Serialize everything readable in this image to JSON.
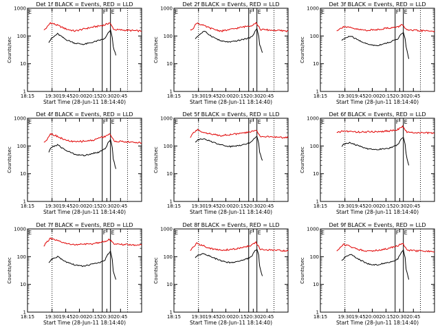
{
  "figure": {
    "xlabel": "Start Time (28-Jun-11 18:14:40)",
    "ylabel": "Counts/sec",
    "x_ticks": [
      "18:15",
      "19:30",
      "19:45",
      "20:00",
      "20:15",
      "20:30",
      "20:45"
    ],
    "y_ticks": [
      "1",
      "10",
      "100",
      "1000"
    ],
    "marker_labels": [
      "E",
      "F",
      "E"
    ],
    "colors": {
      "events": "#000000",
      "lld": "#e00000",
      "axes": "#000000",
      "background": "#ffffff"
    }
  },
  "chart_data": [
    {
      "type": "line",
      "title": "Det 1f BLACK = Events, RED = LLD",
      "ylim": [
        1,
        1000
      ],
      "y_scale": "log",
      "xlim": [
        "18:14:40",
        "20:54:00"
      ],
      "event_lines": [
        "18:14:40",
        "19:30",
        "20:25",
        "20:34",
        "20:48"
      ],
      "series": [
        {
          "name": "LLD",
          "color": "#e00000",
          "t": [
            "19:05",
            "19:15",
            "19:25",
            "19:35",
            "19:45",
            "19:55",
            "20:05",
            "20:15",
            "20:22",
            "20:28",
            "20:33",
            "20:38",
            "20:54"
          ],
          "values": [
            160,
            210,
            300,
            250,
            180,
            150,
            180,
            210,
            230,
            250,
            300,
            170,
            150
          ]
        },
        {
          "name": "Events",
          "color": "#000000",
          "t": [
            "19:20",
            "19:28",
            "19:36",
            "19:45",
            "19:55",
            "20:05",
            "20:15",
            "20:22",
            "20:28",
            "20:31",
            "20:34",
            "20:36",
            "20:37",
            "20:40"
          ],
          "values": [
            60,
            80,
            120,
            75,
            55,
            50,
            60,
            70,
            80,
            120,
            160,
            90,
            40,
            20
          ]
        }
      ]
    },
    {
      "type": "line",
      "title": "Det 2f BLACK = Events, RED = LLD",
      "ylim": [
        1,
        1000
      ],
      "y_scale": "log",
      "xlim": [
        "18:14:40",
        "20:54:00"
      ],
      "event_lines": [
        "18:14:40",
        "19:30",
        "20:25",
        "20:34",
        "20:48"
      ],
      "series": [
        {
          "name": "LLD",
          "color": "#e00000",
          "t": [
            "19:05",
            "19:15",
            "19:25",
            "19:35",
            "19:45",
            "19:55",
            "20:05",
            "20:15",
            "20:22",
            "20:28",
            "20:33",
            "20:38",
            "20:54"
          ],
          "values": [
            160,
            200,
            300,
            240,
            180,
            150,
            170,
            200,
            220,
            240,
            300,
            170,
            150
          ]
        },
        {
          "name": "Events",
          "color": "#000000",
          "t": [
            "19:20",
            "19:28",
            "19:36",
            "19:45",
            "19:55",
            "20:05",
            "20:15",
            "20:22",
            "20:28",
            "20:31",
            "20:34",
            "20:36",
            "20:37",
            "20:40"
          ],
          "values": [
            80,
            100,
            150,
            95,
            65,
            60,
            70,
            80,
            90,
            130,
            180,
            100,
            50,
            25
          ]
        }
      ]
    },
    {
      "type": "line",
      "title": "Det 3f BLACK = Events, RED = LLD",
      "ylim": [
        1,
        1000
      ],
      "y_scale": "log",
      "xlim": [
        "18:14:40",
        "20:54:00"
      ],
      "event_lines": [
        "18:14:40",
        "19:30",
        "20:25",
        "20:34",
        "20:48"
      ],
      "series": [
        {
          "name": "LLD",
          "color": "#e00000",
          "t": [
            "19:05",
            "19:15",
            "19:25",
            "19:35",
            "19:45",
            "19:55",
            "20:05",
            "20:15",
            "20:22",
            "20:28",
            "20:33",
            "20:38",
            "20:54"
          ],
          "values": [
            160,
            180,
            220,
            200,
            170,
            160,
            170,
            190,
            200,
            210,
            260,
            160,
            150
          ]
        },
        {
          "name": "Events",
          "color": "#000000",
          "t": [
            "19:20",
            "19:28",
            "19:36",
            "19:45",
            "19:55",
            "20:05",
            "20:15",
            "20:22",
            "20:28",
            "20:31",
            "20:34",
            "20:36",
            "20:37",
            "20:40"
          ],
          "values": [
            70,
            80,
            100,
            70,
            50,
            45,
            55,
            65,
            80,
            110,
            130,
            80,
            40,
            15
          ]
        }
      ]
    },
    {
      "type": "line",
      "title": "Det 4f BLACK = Events, RED = LLD",
      "ylim": [
        1,
        1000
      ],
      "y_scale": "log",
      "xlim": [
        "18:14:40",
        "20:54:00"
      ],
      "event_lines": [
        "18:14:40",
        "19:30",
        "20:25",
        "20:34",
        "20:48"
      ],
      "series": [
        {
          "name": "LLD",
          "color": "#e00000",
          "t": [
            "19:05",
            "19:15",
            "19:25",
            "19:35",
            "19:45",
            "19:55",
            "20:05",
            "20:15",
            "20:22",
            "20:28",
            "20:33",
            "20:38",
            "20:54"
          ],
          "values": [
            130,
            180,
            280,
            230,
            160,
            140,
            150,
            160,
            200,
            220,
            280,
            150,
            130
          ]
        },
        {
          "name": "Events",
          "color": "#000000",
          "t": [
            "19:20",
            "19:28",
            "19:36",
            "19:45",
            "19:55",
            "20:05",
            "20:15",
            "20:22",
            "20:28",
            "20:31",
            "20:34",
            "20:36",
            "20:37",
            "20:40"
          ],
          "values": [
            60,
            90,
            110,
            70,
            50,
            45,
            55,
            60,
            80,
            120,
            170,
            90,
            35,
            15
          ]
        }
      ]
    },
    {
      "type": "line",
      "title": "Det 5f BLACK = Events, RED = LLD",
      "ylim": [
        1,
        1000
      ],
      "y_scale": "log",
      "xlim": [
        "18:14:40",
        "20:54:00"
      ],
      "event_lines": [
        "18:14:40",
        "19:30",
        "20:25",
        "20:34",
        "20:48"
      ],
      "series": [
        {
          "name": "LLD",
          "color": "#e00000",
          "t": [
            "19:05",
            "19:15",
            "19:25",
            "19:35",
            "19:45",
            "19:55",
            "20:05",
            "20:15",
            "20:22",
            "20:28",
            "20:33",
            "20:38",
            "20:54"
          ],
          "values": [
            200,
            300,
            380,
            320,
            260,
            240,
            260,
            280,
            300,
            330,
            380,
            220,
            200
          ]
        },
        {
          "name": "Events",
          "color": "#000000",
          "t": [
            "19:20",
            "19:28",
            "19:36",
            "19:45",
            "19:55",
            "20:05",
            "20:15",
            "20:22",
            "20:28",
            "20:31",
            "20:34",
            "20:36",
            "20:37",
            "20:40"
          ],
          "values": [
            140,
            170,
            180,
            140,
            110,
            95,
            105,
            120,
            140,
            180,
            230,
            130,
            60,
            30
          ]
        }
      ]
    },
    {
      "type": "line",
      "title": "Det 6f BLACK = Events, RED = LLD",
      "ylim": [
        1,
        1000
      ],
      "y_scale": "log",
      "xlim": [
        "18:14:40",
        "20:54:00"
      ],
      "event_lines": [
        "18:14:40",
        "19:30",
        "20:25",
        "20:34",
        "20:48"
      ],
      "series": [
        {
          "name": "LLD",
          "color": "#e00000",
          "t": [
            "19:05",
            "19:15",
            "19:25",
            "19:35",
            "19:45",
            "19:55",
            "20:05",
            "20:15",
            "20:22",
            "20:28",
            "20:33",
            "20:38",
            "20:54"
          ],
          "values": [
            300,
            320,
            350,
            330,
            320,
            320,
            330,
            340,
            360,
            400,
            500,
            310,
            290
          ]
        },
        {
          "name": "Events",
          "color": "#000000",
          "t": [
            "19:20",
            "19:28",
            "19:36",
            "19:45",
            "19:55",
            "20:05",
            "20:15",
            "20:22",
            "20:28",
            "20:31",
            "20:34",
            "20:36",
            "20:37",
            "20:40"
          ],
          "values": [
            100,
            120,
            130,
            100,
            80,
            75,
            80,
            90,
            110,
            170,
            200,
            120,
            50,
            20
          ]
        }
      ]
    },
    {
      "type": "line",
      "title": "Det 7f BLACK = Events, RED = LLD",
      "ylim": [
        1,
        1000
      ],
      "y_scale": "log",
      "xlim": [
        "18:14:40",
        "20:54:00"
      ],
      "event_lines": [
        "18:14:40",
        "19:30",
        "20:25",
        "20:34",
        "20:48"
      ],
      "series": [
        {
          "name": "LLD",
          "color": "#e00000",
          "t": [
            "19:05",
            "19:15",
            "19:25",
            "19:35",
            "19:45",
            "19:55",
            "20:05",
            "20:15",
            "20:22",
            "20:28",
            "20:33",
            "20:38",
            "20:54"
          ],
          "values": [
            250,
            350,
            450,
            380,
            300,
            270,
            280,
            290,
            330,
            360,
            420,
            280,
            260
          ]
        },
        {
          "name": "Events",
          "color": "#000000",
          "t": [
            "19:20",
            "19:28",
            "19:36",
            "19:45",
            "19:55",
            "20:05",
            "20:15",
            "20:22",
            "20:28",
            "20:31",
            "20:34",
            "20:36",
            "20:37",
            "20:40"
          ],
          "values": [
            60,
            80,
            100,
            65,
            50,
            45,
            55,
            60,
            75,
            120,
            150,
            80,
            30,
            15
          ]
        }
      ]
    },
    {
      "type": "line",
      "title": "Det 8f BLACK = Events, RED = LLD",
      "ylim": [
        1,
        1000
      ],
      "y_scale": "log",
      "xlim": [
        "18:14:40",
        "20:54:00"
      ],
      "event_lines": [
        "18:14:40",
        "19:30",
        "20:25",
        "20:34",
        "20:48"
      ],
      "series": [
        {
          "name": "LLD",
          "color": "#e00000",
          "t": [
            "19:05",
            "19:15",
            "19:25",
            "19:35",
            "19:45",
            "19:55",
            "20:05",
            "20:15",
            "20:22",
            "20:28",
            "20:33",
            "20:38",
            "20:54"
          ],
          "values": [
            170,
            230,
            300,
            250,
            190,
            170,
            180,
            200,
            230,
            260,
            320,
            180,
            160
          ]
        },
        {
          "name": "Events",
          "color": "#000000",
          "t": [
            "19:20",
            "19:28",
            "19:36",
            "19:45",
            "19:55",
            "20:05",
            "20:15",
            "20:22",
            "20:28",
            "20:31",
            "20:34",
            "20:36",
            "20:37",
            "20:40"
          ],
          "values": [
            90,
            110,
            130,
            95,
            70,
            60,
            70,
            80,
            100,
            150,
            190,
            110,
            45,
            20
          ]
        }
      ]
    },
    {
      "type": "line",
      "title": "Det 9f BLACK = Events, RED = LLD",
      "ylim": [
        1,
        1000
      ],
      "y_scale": "log",
      "xlim": [
        "18:14:40",
        "20:54:00"
      ],
      "event_lines": [
        "18:14:40",
        "19:30",
        "20:25",
        "20:34",
        "20:48"
      ],
      "series": [
        {
          "name": "LLD",
          "color": "#e00000",
          "t": [
            "19:05",
            "19:15",
            "19:25",
            "19:35",
            "19:45",
            "19:55",
            "20:05",
            "20:15",
            "20:22",
            "20:28",
            "20:33",
            "20:38",
            "20:54"
          ],
          "values": [
            160,
            210,
            280,
            240,
            180,
            160,
            170,
            190,
            220,
            250,
            310,
            170,
            150
          ]
        },
        {
          "name": "Events",
          "color": "#000000",
          "t": [
            "19:20",
            "19:28",
            "19:36",
            "19:45",
            "19:55",
            "20:05",
            "20:15",
            "20:22",
            "20:28",
            "20:31",
            "20:34",
            "20:36",
            "20:37",
            "20:40"
          ],
          "values": [
            70,
            90,
            120,
            80,
            55,
            50,
            60,
            65,
            85,
            130,
            170,
            90,
            35,
            15
          ]
        }
      ]
    }
  ]
}
